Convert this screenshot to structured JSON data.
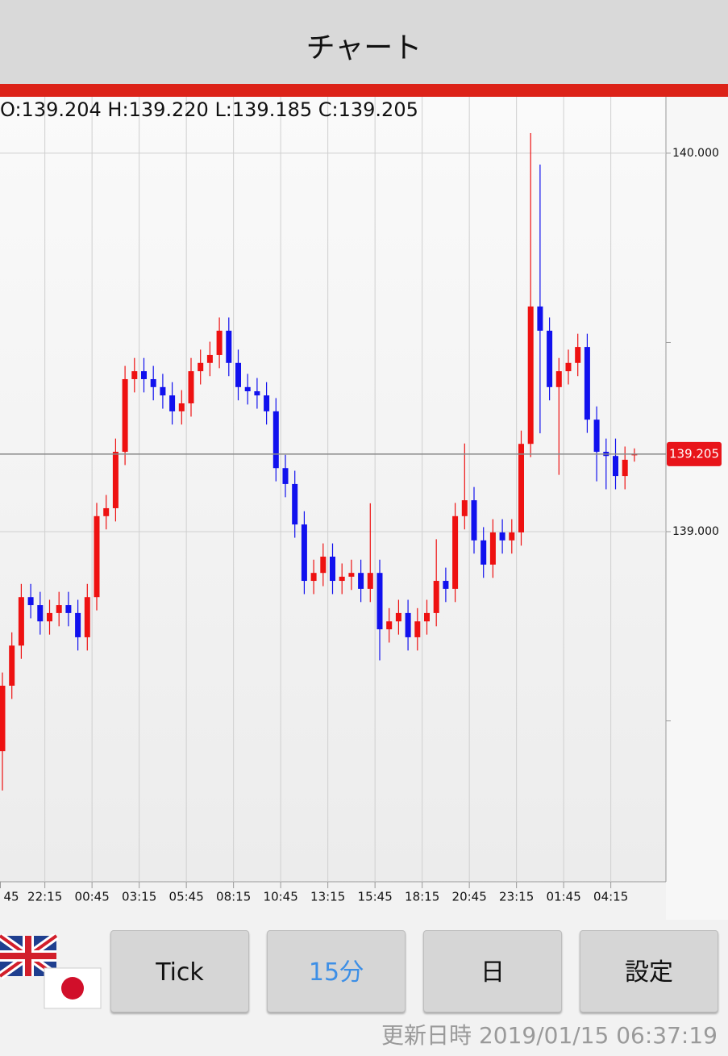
{
  "header": {
    "title": "チャート"
  },
  "chart_data": {
    "type": "candlestick",
    "ohlc_label": "O:139.204 H:139.220 L:139.185 C:139.205",
    "up_color": "#ee1111",
    "down_color": "#1111ee",
    "open": [
      138.42,
      138.593,
      138.699,
      138.827,
      138.806,
      138.763,
      138.785,
      138.806,
      138.785,
      138.721,
      138.827,
      139.041,
      139.062,
      139.211,
      139.403,
      139.424,
      139.403,
      139.382,
      139.36,
      139.318,
      139.339,
      139.424,
      139.446,
      139.467,
      139.531,
      139.446,
      139.382,
      139.371,
      139.36,
      139.318,
      139.168,
      139.126,
      139.019,
      138.87,
      138.891,
      138.934,
      138.87,
      138.881,
      138.891,
      138.849,
      138.891,
      138.742,
      138.763,
      138.785,
      138.721,
      138.763,
      138.785,
      138.87,
      138.849,
      139.041,
      139.083,
      138.977,
      138.913,
      138.998,
      138.977,
      138.998,
      139.232,
      139.595,
      139.531,
      139.382,
      139.424,
      139.446,
      139.488,
      139.296,
      139.211,
      139.2,
      139.147,
      139.204
    ],
    "high": [
      138.628,
      138.734,
      138.862,
      138.862,
      138.841,
      138.82,
      138.841,
      138.841,
      138.82,
      138.862,
      139.076,
      139.097,
      139.246,
      139.438,
      139.459,
      139.459,
      139.438,
      139.417,
      139.395,
      139.374,
      139.459,
      139.481,
      139.502,
      139.566,
      139.566,
      139.481,
      139.417,
      139.406,
      139.395,
      139.353,
      139.203,
      139.161,
      139.054,
      138.926,
      138.969,
      138.969,
      138.916,
      138.926,
      138.926,
      139.075,
      138.926,
      138.798,
      138.82,
      138.82,
      138.798,
      138.82,
      138.98,
      138.905,
      139.076,
      139.233,
      139.118,
      139.012,
      139.033,
      139.033,
      139.033,
      139.267,
      140.053,
      139.97,
      139.566,
      139.459,
      139.481,
      139.523,
      139.523,
      139.331,
      139.246,
      139.246,
      139.225,
      139.22
    ],
    "low": [
      138.316,
      138.558,
      138.664,
      138.771,
      138.728,
      138.728,
      138.75,
      138.75,
      138.686,
      138.686,
      138.792,
      139.006,
      139.027,
      139.176,
      139.368,
      139.368,
      139.347,
      139.325,
      139.283,
      139.283,
      139.304,
      139.389,
      139.411,
      139.432,
      139.411,
      139.347,
      139.336,
      139.325,
      139.283,
      139.133,
      139.091,
      138.984,
      138.835,
      138.835,
      138.856,
      138.835,
      138.835,
      138.846,
      138.814,
      138.814,
      138.66,
      138.707,
      138.728,
      138.686,
      138.686,
      138.728,
      138.75,
      138.814,
      138.814,
      139.006,
      138.942,
      138.878,
      138.878,
      138.942,
      138.942,
      138.963,
      139.197,
      139.26,
      139.347,
      139.15,
      139.389,
      139.411,
      139.261,
      139.133,
      139.112,
      139.112,
      139.112,
      139.185
    ],
    "close": [
      138.593,
      138.699,
      138.827,
      138.806,
      138.763,
      138.785,
      138.806,
      138.785,
      138.721,
      138.827,
      139.041,
      139.062,
      139.211,
      139.403,
      139.424,
      139.403,
      139.382,
      139.36,
      139.318,
      139.339,
      139.424,
      139.446,
      139.467,
      139.531,
      139.446,
      139.382,
      139.371,
      139.36,
      139.318,
      139.168,
      139.126,
      139.019,
      138.87,
      138.891,
      138.934,
      138.87,
      138.881,
      138.891,
      138.849,
      138.891,
      138.742,
      138.763,
      138.785,
      138.721,
      138.763,
      138.785,
      138.87,
      138.849,
      139.041,
      139.083,
      138.977,
      138.913,
      138.998,
      138.977,
      138.998,
      139.232,
      139.595,
      139.531,
      139.382,
      139.424,
      139.446,
      139.488,
      139.296,
      139.211,
      139.2,
      139.147,
      139.19,
      139.205
    ],
    "xlim": [
      0,
      70
    ],
    "xticks": [
      {
        "value": -0.5,
        "label": "45"
      },
      {
        "value": 4.5,
        "label": "22:15"
      },
      {
        "value": 9.5,
        "label": "00:45"
      },
      {
        "value": 14.5,
        "label": "03:15"
      },
      {
        "value": 19.5,
        "label": "05:45"
      },
      {
        "value": 24.5,
        "label": "08:15"
      },
      {
        "value": 29.5,
        "label": "10:45"
      },
      {
        "value": 34.5,
        "label": "13:15"
      },
      {
        "value": 39.5,
        "label": "15:45"
      },
      {
        "value": 44.5,
        "label": "18:15"
      },
      {
        "value": 49.5,
        "label": "20:45"
      },
      {
        "value": 54.5,
        "label": "23:15"
      },
      {
        "value": 59.5,
        "label": "01:45"
      },
      {
        "value": 64.5,
        "label": "04:15"
      }
    ],
    "ylim": [
      138.075,
      140.149
    ],
    "yticks": [
      {
        "value": 139,
        "label": "139.000"
      },
      {
        "value": 140,
        "label": "140.000"
      }
    ],
    "minor_yticks": [
      138.5,
      139.5
    ],
    "grid": true,
    "last_price": {
      "value": 139.205,
      "label": "139.205"
    }
  },
  "buttons": [
    "Tick",
    "15分",
    "日",
    "設定"
  ],
  "footer": {
    "updated": "更新日時 2019/01/15 06:37:19"
  }
}
